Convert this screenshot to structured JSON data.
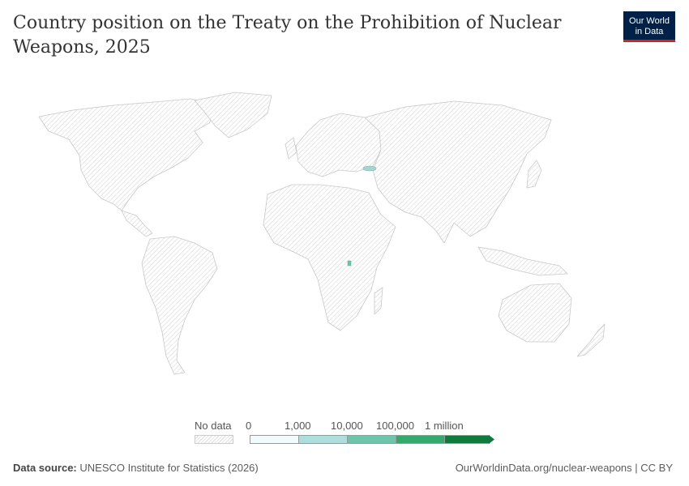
{
  "header": {
    "title": "Country position on the Treaty on the Prohibition of Nuclear Weapons, 2025",
    "logo_line1": "Our World",
    "logo_line2": "in Data"
  },
  "legend": {
    "no_data_label": "No data",
    "ticks": [
      "0",
      "1,000",
      "10,000",
      "100,000",
      "1 million"
    ],
    "bin_colors": [
      "#f2fbfb",
      "#addedd",
      "#6cc5a8",
      "#34a96b",
      "#0f7a3c"
    ]
  },
  "map": {
    "highlighted": [
      {
        "region": "Georgia",
        "color": "#9ed7d3"
      },
      {
        "region": "Rwanda/Burundi",
        "color": "#6cc5a8"
      }
    ],
    "no_data_pattern": "hatched-gray"
  },
  "footer": {
    "source_prefix": "Data source:",
    "source": "UNESCO Institute for Statistics (2026)",
    "url": "OurWorldinData.org/nuclear-weapons | CC BY"
  }
}
